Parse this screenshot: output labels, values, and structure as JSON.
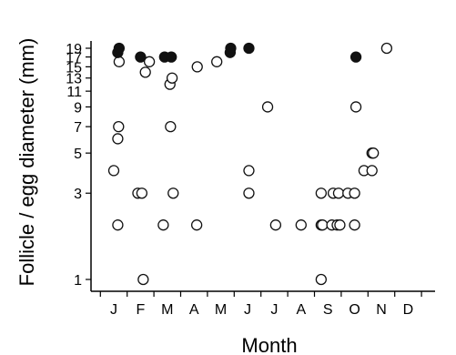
{
  "chart_data": {
    "type": "scatter",
    "title": "",
    "xlabel": "Month",
    "ylabel": "Follicle / egg diameter (mm)",
    "x_tick_labels": [
      "J",
      "F",
      "M",
      "A",
      "M",
      "J",
      "J",
      "A",
      "S",
      "O",
      "N",
      "D"
    ],
    "y_ticks": [
      1,
      3,
      5,
      7,
      9,
      11,
      13,
      15,
      17,
      19
    ],
    "y_tick_labels": [
      "1",
      "3",
      "5",
      "7",
      "9",
      "11",
      "13",
      "15",
      "17",
      "19"
    ],
    "xlim": [
      0,
      12
    ],
    "ylim": [
      1,
      19
    ],
    "y_scale": "log",
    "grid": false,
    "legend": "none",
    "marker_colors": {
      "follicle": "#ffffff",
      "egg": "#111111",
      "stroke": "#111111"
    },
    "series": [
      {
        "marker": "open-circle",
        "points": [
          {
            "x": 0.0,
            "y": 4
          },
          {
            "x": 0.15,
            "y": 2
          },
          {
            "x": 0.15,
            "y": 6
          },
          {
            "x": 0.18,
            "y": 7
          },
          {
            "x": 0.2,
            "y": 16
          },
          {
            "x": 0.9,
            "y": 3
          },
          {
            "x": 1.05,
            "y": 3
          },
          {
            "x": 1.1,
            "y": 1
          },
          {
            "x": 1.18,
            "y": 14
          },
          {
            "x": 1.33,
            "y": 16
          },
          {
            "x": 1.85,
            "y": 2
          },
          {
            "x": 2.1,
            "y": 12
          },
          {
            "x": 2.12,
            "y": 7
          },
          {
            "x": 2.18,
            "y": 13
          },
          {
            "x": 2.22,
            "y": 3
          },
          {
            "x": 3.1,
            "y": 2
          },
          {
            "x": 3.12,
            "y": 15
          },
          {
            "x": 3.85,
            "y": 16
          },
          {
            "x": 5.05,
            "y": 4
          },
          {
            "x": 5.05,
            "y": 3
          },
          {
            "x": 5.75,
            "y": 9
          },
          {
            "x": 6.05,
            "y": 2
          },
          {
            "x": 7.0,
            "y": 2
          },
          {
            "x": 7.75,
            "y": 3
          },
          {
            "x": 7.75,
            "y": 2
          },
          {
            "x": 7.75,
            "y": 1
          },
          {
            "x": 7.8,
            "y": 2
          },
          {
            "x": 8.15,
            "y": 2
          },
          {
            "x": 8.2,
            "y": 3
          },
          {
            "x": 8.35,
            "y": 2
          },
          {
            "x": 8.4,
            "y": 3
          },
          {
            "x": 8.45,
            "y": 2
          },
          {
            "x": 8.75,
            "y": 3
          },
          {
            "x": 9.0,
            "y": 2
          },
          {
            "x": 9.0,
            "y": 3
          },
          {
            "x": 9.05,
            "y": 9
          },
          {
            "x": 9.35,
            "y": 4
          },
          {
            "x": 9.65,
            "y": 4
          },
          {
            "x": 9.65,
            "y": 5
          },
          {
            "x": 9.7,
            "y": 5
          },
          {
            "x": 10.2,
            "y": 19
          }
        ]
      },
      {
        "marker": "filled-circle",
        "points": [
          {
            "x": 0.15,
            "y": 18
          },
          {
            "x": 0.2,
            "y": 19
          },
          {
            "x": 1.0,
            "y": 17
          },
          {
            "x": 1.9,
            "y": 17
          },
          {
            "x": 2.15,
            "y": 17
          },
          {
            "x": 4.35,
            "y": 18
          },
          {
            "x": 4.37,
            "y": 19
          },
          {
            "x": 5.05,
            "y": 19
          },
          {
            "x": 9.05,
            "y": 17
          }
        ]
      }
    ]
  }
}
